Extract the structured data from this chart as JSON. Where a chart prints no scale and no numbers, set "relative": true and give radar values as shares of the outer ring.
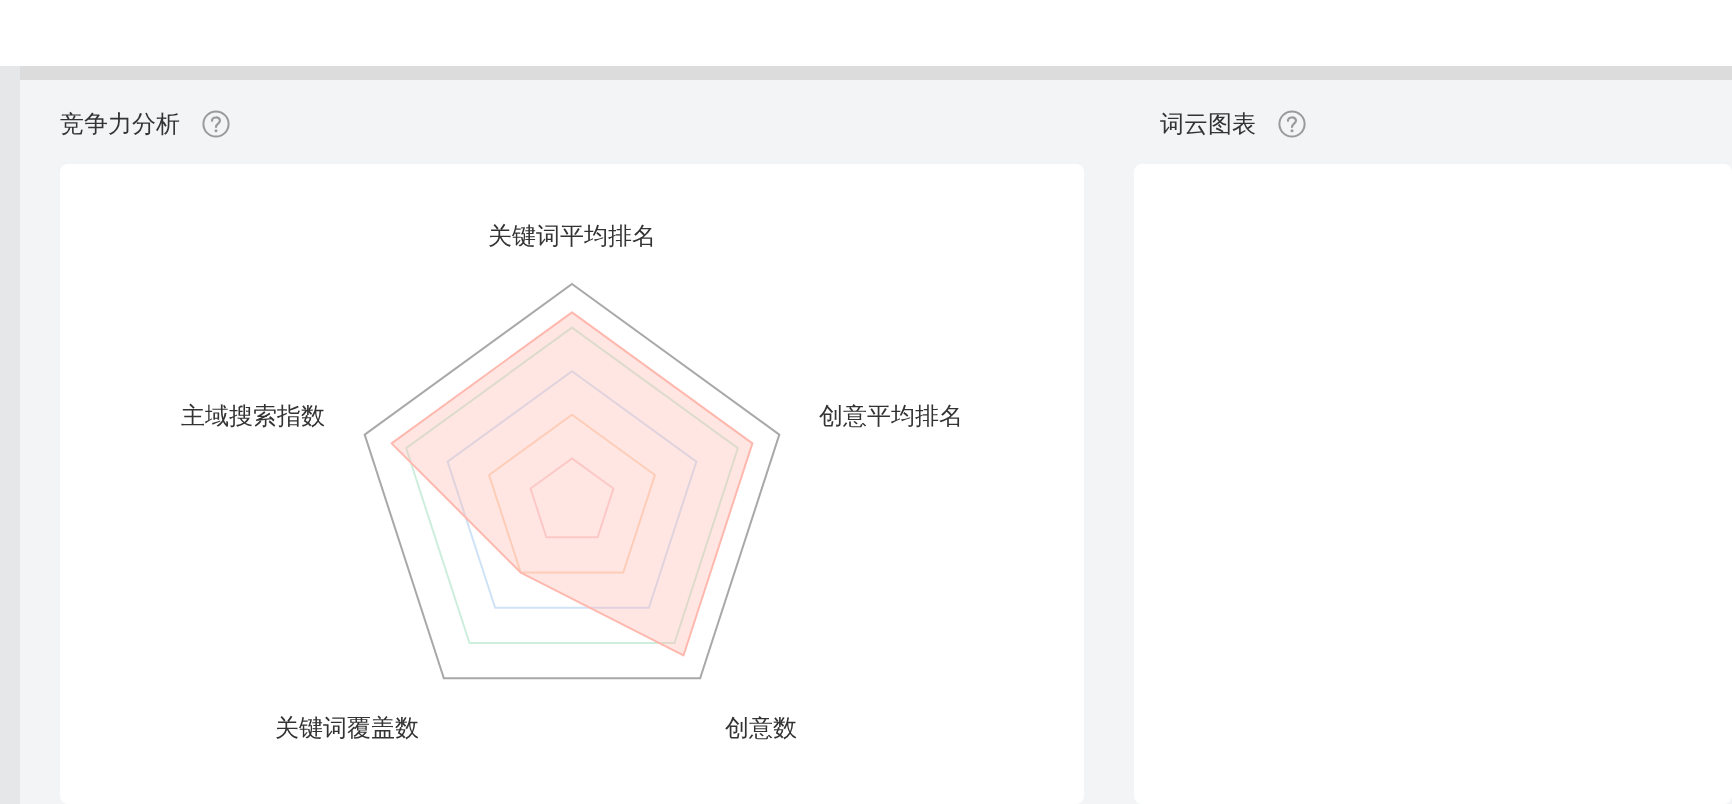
{
  "chart_data": [
    {
      "type": "radar",
      "title": "竞争力分析",
      "categories": [
        "关键词平均排名",
        "创意平均排名",
        "创意数",
        "关键词覆盖数",
        "主域搜索指数"
      ],
      "relative": true,
      "series": [
        {
          "color": "#ffb8ae",
          "values": [
            0.87,
            0.87,
            0.87,
            0.4,
            0.87
          ]
        }
      ],
      "grid": true
    },
    {
      "type": "other",
      "title": "词云图表"
    }
  ]
}
